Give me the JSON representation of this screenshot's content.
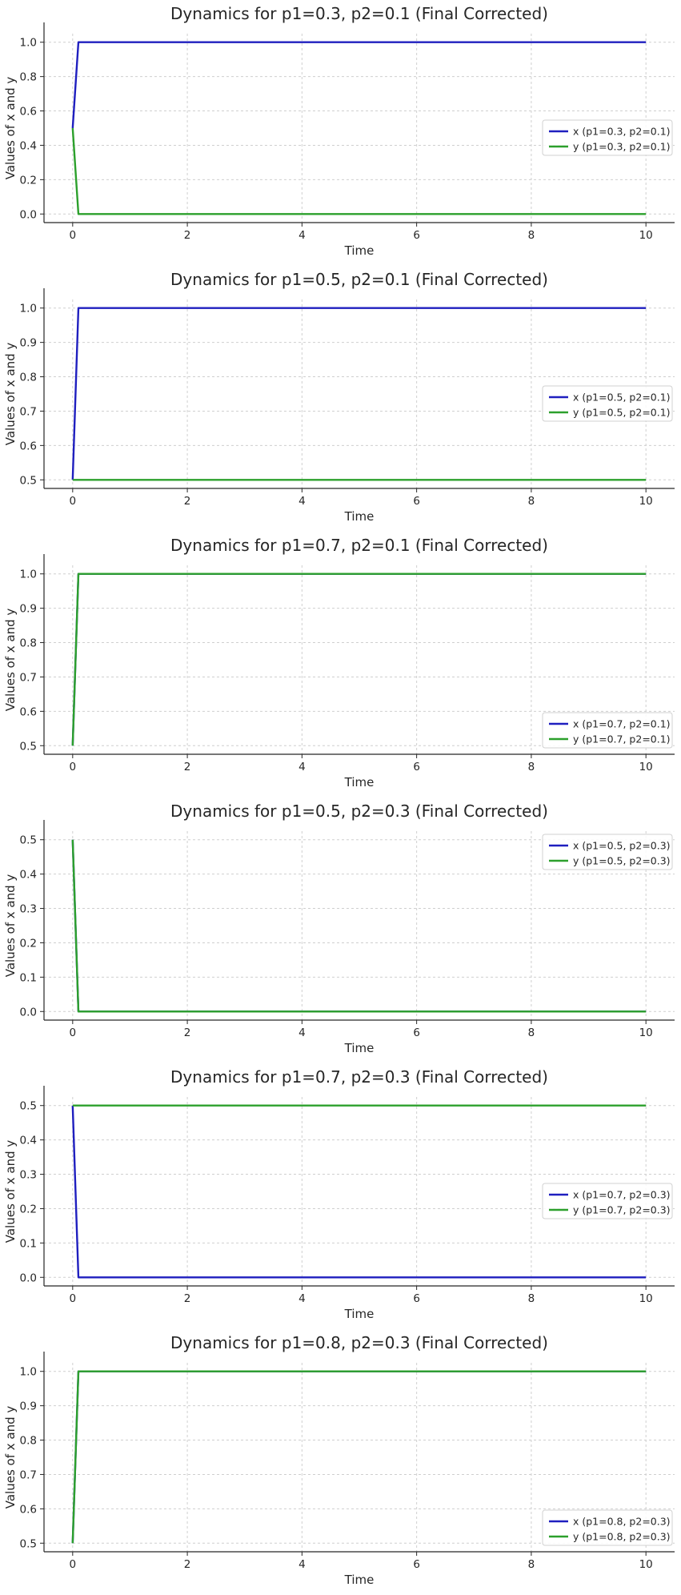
{
  "chart_data": [
    {
      "type": "line",
      "title": "Dynamics for p1=0.3, p2=0.1 (Final Corrected)",
      "xlabel": "Time",
      "ylabel": "Values of x and y",
      "xlim": [
        -0.5,
        10.5
      ],
      "ylim": [
        -0.05,
        1.05
      ],
      "xticks": [
        0,
        2,
        4,
        6,
        8,
        10
      ],
      "yticks": [
        0.0,
        0.2,
        0.4,
        0.6,
        0.8,
        1.0
      ],
      "ytick_labels": [
        "0.0",
        "0.2",
        "0.4",
        "0.6",
        "0.8",
        "1.0"
      ],
      "grid": true,
      "legend_position": "center-right",
      "series": [
        {
          "name": "x (p1=0.3, p2=0.1)",
          "color": "#1f1fbf",
          "x": [
            0,
            0.1,
            10
          ],
          "y": [
            0.5,
            1.0,
            1.0
          ]
        },
        {
          "name": "y (p1=0.3, p2=0.1)",
          "color": "#2ca02c",
          "x": [
            0,
            0.1,
            10
          ],
          "y": [
            0.5,
            0.0,
            0.0
          ]
        }
      ]
    },
    {
      "type": "line",
      "title": "Dynamics for p1=0.5, p2=0.1 (Final Corrected)",
      "xlabel": "Time",
      "ylabel": "Values of x and y",
      "xlim": [
        -0.5,
        10.5
      ],
      "ylim": [
        0.475,
        1.025
      ],
      "xticks": [
        0,
        2,
        4,
        6,
        8,
        10
      ],
      "yticks": [
        0.5,
        0.6,
        0.7,
        0.8,
        0.9,
        1.0
      ],
      "ytick_labels": [
        "0.5",
        "0.6",
        "0.7",
        "0.8",
        "0.9",
        "1.0"
      ],
      "grid": true,
      "legend_position": "center-right",
      "series": [
        {
          "name": "x (p1=0.5, p2=0.1)",
          "color": "#1f1fbf",
          "x": [
            0,
            0.1,
            10
          ],
          "y": [
            0.5,
            1.0,
            1.0
          ]
        },
        {
          "name": "y (p1=0.5, p2=0.1)",
          "color": "#2ca02c",
          "x": [
            0,
            0.1,
            10
          ],
          "y": [
            0.5,
            0.5,
            0.5
          ]
        }
      ]
    },
    {
      "type": "line",
      "title": "Dynamics for p1=0.7, p2=0.1 (Final Corrected)",
      "xlabel": "Time",
      "ylabel": "Values of x and y",
      "xlim": [
        -0.5,
        10.5
      ],
      "ylim": [
        0.475,
        1.025
      ],
      "xticks": [
        0,
        2,
        4,
        6,
        8,
        10
      ],
      "yticks": [
        0.5,
        0.6,
        0.7,
        0.8,
        0.9,
        1.0
      ],
      "ytick_labels": [
        "0.5",
        "0.6",
        "0.7",
        "0.8",
        "0.9",
        "1.0"
      ],
      "grid": true,
      "legend_position": "lower-right",
      "series": [
        {
          "name": "x (p1=0.7, p2=0.1)",
          "color": "#1f1fbf",
          "x": [
            0,
            0.1,
            10
          ],
          "y": [
            0.5,
            1.0,
            1.0
          ]
        },
        {
          "name": "y (p1=0.7, p2=0.1)",
          "color": "#2ca02c",
          "x": [
            0,
            0.1,
            10
          ],
          "y": [
            0.5,
            1.0,
            1.0
          ]
        }
      ]
    },
    {
      "type": "line",
      "title": "Dynamics for p1=0.5, p2=0.3 (Final Corrected)",
      "xlabel": "Time",
      "ylabel": "Values of x and y",
      "xlim": [
        -0.5,
        10.5
      ],
      "ylim": [
        -0.025,
        0.525
      ],
      "xticks": [
        0,
        2,
        4,
        6,
        8,
        10
      ],
      "yticks": [
        0.0,
        0.1,
        0.2,
        0.3,
        0.4,
        0.5
      ],
      "ytick_labels": [
        "0.0",
        "0.1",
        "0.2",
        "0.3",
        "0.4",
        "0.5"
      ],
      "grid": true,
      "legend_position": "upper-right",
      "series": [
        {
          "name": "x (p1=0.5, p2=0.3)",
          "color": "#1f1fbf",
          "x": [
            0,
            0.1,
            10
          ],
          "y": [
            0.5,
            0.0,
            0.0
          ]
        },
        {
          "name": "y (p1=0.5, p2=0.3)",
          "color": "#2ca02c",
          "x": [
            0,
            0.1,
            10
          ],
          "y": [
            0.5,
            0.0,
            0.0
          ]
        }
      ]
    },
    {
      "type": "line",
      "title": "Dynamics for p1=0.7, p2=0.3 (Final Corrected)",
      "xlabel": "Time",
      "ylabel": "Values of x and y",
      "xlim": [
        -0.5,
        10.5
      ],
      "ylim": [
        -0.025,
        0.525
      ],
      "xticks": [
        0,
        2,
        4,
        6,
        8,
        10
      ],
      "yticks": [
        0.0,
        0.1,
        0.2,
        0.3,
        0.4,
        0.5
      ],
      "ytick_labels": [
        "0.0",
        "0.1",
        "0.2",
        "0.3",
        "0.4",
        "0.5"
      ],
      "grid": true,
      "legend_position": "center-right",
      "series": [
        {
          "name": "x (p1=0.7, p2=0.3)",
          "color": "#1f1fbf",
          "x": [
            0,
            0.1,
            10
          ],
          "y": [
            0.5,
            0.0,
            0.0
          ]
        },
        {
          "name": "y (p1=0.7, p2=0.3)",
          "color": "#2ca02c",
          "x": [
            0,
            0.1,
            10
          ],
          "y": [
            0.5,
            0.5,
            0.5
          ]
        }
      ]
    },
    {
      "type": "line",
      "title": "Dynamics for p1=0.8, p2=0.3 (Final Corrected)",
      "xlabel": "Time",
      "ylabel": "Values of x and y",
      "xlim": [
        -0.5,
        10.5
      ],
      "ylim": [
        0.475,
        1.025
      ],
      "xticks": [
        0,
        2,
        4,
        6,
        8,
        10
      ],
      "yticks": [
        0.5,
        0.6,
        0.7,
        0.8,
        0.9,
        1.0
      ],
      "ytick_labels": [
        "0.5",
        "0.6",
        "0.7",
        "0.8",
        "0.9",
        "1.0"
      ],
      "grid": true,
      "legend_position": "lower-right",
      "series": [
        {
          "name": "x (p1=0.8, p2=0.3)",
          "color": "#1f1fbf",
          "x": [
            0,
            0.1,
            10
          ],
          "y": [
            0.5,
            1.0,
            1.0
          ]
        },
        {
          "name": "y (p1=0.8, p2=0.3)",
          "color": "#2ca02c",
          "x": [
            0,
            0.1,
            10
          ],
          "y": [
            0.5,
            1.0,
            1.0
          ]
        }
      ]
    }
  ]
}
